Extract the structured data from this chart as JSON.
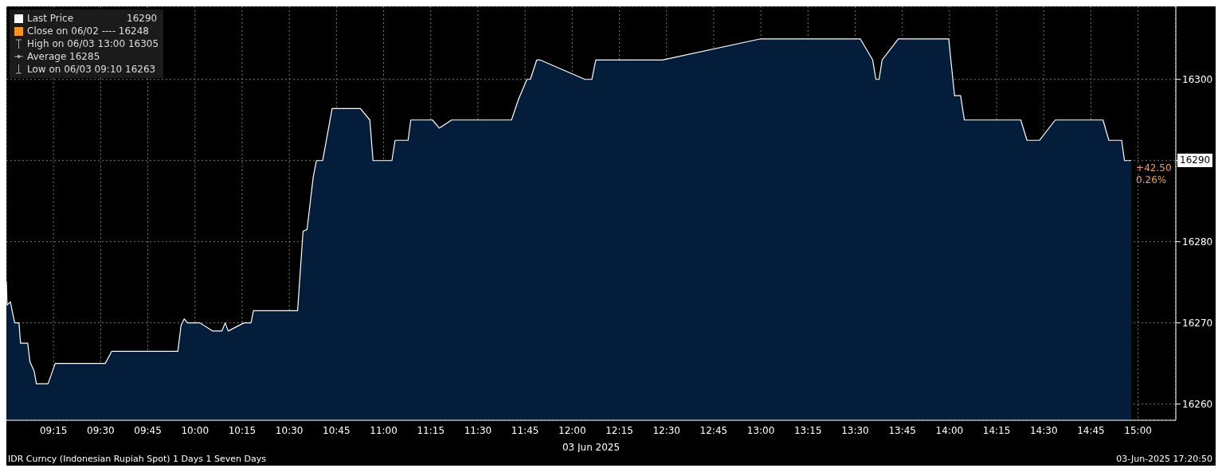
{
  "chart_data": {
    "type": "area",
    "xlabel": "03 Jun 2025",
    "legend": "top left",
    "grid": true,
    "xlim": [
      9,
      15.2
    ],
    "ylim": [
      16258,
      16309
    ],
    "xticks": [
      {
        "value": 9.25,
        "label": "09:15"
      },
      {
        "value": 9.5,
        "label": "09:30"
      },
      {
        "value": 9.75,
        "label": "09:45"
      },
      {
        "value": 10,
        "label": "10:00"
      },
      {
        "value": 10.25,
        "label": "10:15"
      },
      {
        "value": 10.5,
        "label": "10:30"
      },
      {
        "value": 10.75,
        "label": "10:45"
      },
      {
        "value": 11,
        "label": "11:00"
      },
      {
        "value": 11.25,
        "label": "11:15"
      },
      {
        "value": 11.5,
        "label": "11:30"
      },
      {
        "value": 11.75,
        "label": "11:45"
      },
      {
        "value": 12,
        "label": "12:00"
      },
      {
        "value": 12.25,
        "label": "12:15"
      },
      {
        "value": 12.5,
        "label": "12:30"
      },
      {
        "value": 12.75,
        "label": "12:45"
      },
      {
        "value": 13,
        "label": "13:00"
      },
      {
        "value": 13.25,
        "label": "13:15"
      },
      {
        "value": 13.5,
        "label": "13:30"
      },
      {
        "value": 13.75,
        "label": "13:45"
      },
      {
        "value": 14,
        "label": "14:00"
      },
      {
        "value": 14.25,
        "label": "14:15"
      },
      {
        "value": 14.5,
        "label": "14:30"
      },
      {
        "value": 14.75,
        "label": "14:45"
      },
      {
        "value": 15,
        "label": "15:00"
      }
    ],
    "yticks": [
      16260,
      16270,
      16280,
      16290,
      16300
    ],
    "x": [
      9.0,
      9.004,
      9.021,
      9.044,
      9.067,
      9.075,
      9.113,
      9.125,
      9.148,
      9.159,
      9.221,
      9.259,
      9.524,
      9.559,
      9.909,
      9.926,
      9.943,
      9.96,
      10.026,
      10.093,
      10.143,
      10.16,
      10.176,
      10.26,
      10.297,
      10.31,
      10.544,
      10.573,
      10.594,
      10.627,
      10.644,
      10.677,
      10.727,
      10.877,
      10.927,
      10.944,
      11.044,
      11.061,
      11.13,
      11.144,
      11.259,
      11.295,
      11.361,
      11.678,
      11.716,
      11.76,
      11.778,
      11.812,
      11.829,
      12.068,
      12.104,
      12.125,
      12.478,
      13.0,
      13.527,
      13.593,
      13.61,
      13.627,
      13.643,
      13.729,
      13.996,
      14.027,
      14.059,
      14.079,
      14.378,
      14.411,
      14.478,
      14.561,
      14.814,
      14.845,
      14.913,
      14.928,
      14.964
    ],
    "series": [
      {
        "name": "Last Price",
        "color": "#ffffff",
        "values": [
          16275.1,
          16272.2,
          16272.6,
          16270,
          16270,
          16267.5,
          16267.5,
          16265.2,
          16264,
          16262.5,
          16262.5,
          16265,
          16265,
          16266.5,
          16266.5,
          16269.7,
          16270.5,
          16270,
          16270,
          16269,
          16269,
          16270,
          16269,
          16270,
          16270,
          16271.5,
          16271.5,
          16281.3,
          16281.5,
          16288,
          16290,
          16290,
          16296.4,
          16296.4,
          16295,
          16290,
          16290,
          16292.5,
          16292.5,
          16295,
          16295,
          16294,
          16295,
          16295,
          16297.6,
          16300,
          16300,
          16302.4,
          16302.4,
          16300,
          16300,
          16302.4,
          16302.4,
          16305,
          16305,
          16302.4,
          16300,
          16300,
          16302.4,
          16305,
          16305,
          16298,
          16298,
          16295,
          16295,
          16292.5,
          16292.5,
          16295,
          16295,
          16292.5,
          16292.5,
          16290,
          16290
        ]
      }
    ],
    "annotations": [
      "16290",
      "Close on 06/02 ---- 16248",
      "High on 06/03 13:00 16305",
      "Average 16285",
      "Low on 06/03 09:10 16263",
      "16290",
      "+42.50",
      "0.26%",
      "IDR Curncy (Indonesian Rupiah Spot) 1 Days 1 Seven Days",
      "03-Jun-2025 17:20:50"
    ]
  }
}
